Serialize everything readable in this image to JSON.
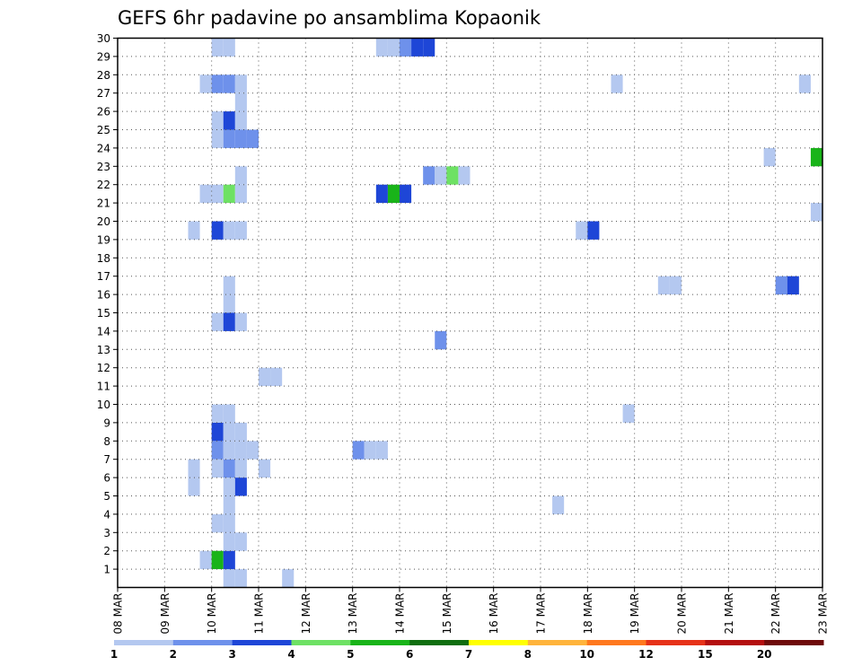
{
  "chart_data": {
    "type": "heatmap",
    "title": "GEFS 6hr padavine po ansamblima Kopaonik",
    "x_tick_labels": [
      "08 MAR",
      "09 MAR",
      "10 MAR",
      "11 MAR",
      "12 MAR",
      "13 MAR",
      "14 MAR",
      "15 MAR",
      "16 MAR",
      "17 MAR",
      "18 MAR",
      "19 MAR",
      "20 MAR",
      "21 MAR",
      "22 MAR",
      "23 MAR"
    ],
    "y_tick_labels": [
      "1",
      "2",
      "3",
      "4",
      "5",
      "6",
      "7",
      "8",
      "9",
      "10",
      "11",
      "12",
      "13",
      "14",
      "15",
      "16",
      "17",
      "18",
      "19",
      "20",
      "21",
      "22",
      "23",
      "24",
      "25",
      "26",
      "27",
      "28",
      "29",
      "30"
    ],
    "xlim_days": [
      8,
      23
    ],
    "ylim": [
      0,
      30
    ],
    "grid": true,
    "legend": {
      "placement": "bottom",
      "labels": [
        "1",
        "2",
        "3",
        "4",
        "5",
        "6",
        "7",
        "8",
        "10",
        "12",
        "15",
        "20"
      ],
      "colors": [
        "#b4c8f0",
        "#6e91eb",
        "#1e46d7",
        "#6ee164",
        "#19b419",
        "#0f6e0f",
        "#ffff00",
        "#ffb43c",
        "#ff781e",
        "#e63219",
        "#b40f0f",
        "#6e0a0a"
      ]
    },
    "cells": [
      {
        "x": "10 MAR 06",
        "y": 0,
        "v": 1
      },
      {
        "x": "10 MAR 12",
        "y": 0,
        "v": 1
      },
      {
        "x": "11 MAR 12",
        "y": 0,
        "v": 1
      },
      {
        "x": "09 MAR 18",
        "y": 1,
        "v": 1
      },
      {
        "x": "10 MAR 00",
        "y": 1,
        "v": 5
      },
      {
        "x": "10 MAR 06",
        "y": 1,
        "v": 3
      },
      {
        "x": "10 MAR 06",
        "y": 2,
        "v": 1
      },
      {
        "x": "10 MAR 12",
        "y": 2,
        "v": 1
      },
      {
        "x": "10 MAR 00",
        "y": 3,
        "v": 1
      },
      {
        "x": "10 MAR 06",
        "y": 3,
        "v": 1
      },
      {
        "x": "10 MAR 06",
        "y": 4,
        "v": 1
      },
      {
        "x": "17 MAR 06",
        "y": 4,
        "v": 1
      },
      {
        "x": "09 MAR 12",
        "y": 5,
        "v": 1
      },
      {
        "x": "10 MAR 06",
        "y": 5,
        "v": 1
      },
      {
        "x": "10 MAR 12",
        "y": 5,
        "v": 3
      },
      {
        "x": "09 MAR 12",
        "y": 6,
        "v": 1
      },
      {
        "x": "10 MAR 00",
        "y": 6,
        "v": 1
      },
      {
        "x": "10 MAR 06",
        "y": 6,
        "v": 2
      },
      {
        "x": "10 MAR 12",
        "y": 6,
        "v": 1
      },
      {
        "x": "11 MAR 00",
        "y": 6,
        "v": 1
      },
      {
        "x": "10 MAR 00",
        "y": 7,
        "v": 2
      },
      {
        "x": "10 MAR 06",
        "y": 7,
        "v": 1
      },
      {
        "x": "10 MAR 12",
        "y": 7,
        "v": 1
      },
      {
        "x": "10 MAR 18",
        "y": 7,
        "v": 1
      },
      {
        "x": "13 MAR 00",
        "y": 7,
        "v": 2
      },
      {
        "x": "13 MAR 06",
        "y": 7,
        "v": 1
      },
      {
        "x": "13 MAR 12",
        "y": 7,
        "v": 1
      },
      {
        "x": "10 MAR 00",
        "y": 8,
        "v": 3
      },
      {
        "x": "10 MAR 06",
        "y": 8,
        "v": 1
      },
      {
        "x": "10 MAR 12",
        "y": 8,
        "v": 1
      },
      {
        "x": "10 MAR 00",
        "y": 9,
        "v": 1
      },
      {
        "x": "10 MAR 06",
        "y": 9,
        "v": 1
      },
      {
        "x": "18 MAR 18",
        "y": 9,
        "v": 1
      },
      {
        "x": "11 MAR 00",
        "y": 11,
        "v": 1
      },
      {
        "x": "11 MAR 06",
        "y": 11,
        "v": 1
      },
      {
        "x": "14 MAR 18",
        "y": 13,
        "v": 2
      },
      {
        "x": "10 MAR 00",
        "y": 14,
        "v": 1
      },
      {
        "x": "10 MAR 06",
        "y": 14,
        "v": 3
      },
      {
        "x": "10 MAR 12",
        "y": 14,
        "v": 1
      },
      {
        "x": "10 MAR 06",
        "y": 15,
        "v": 1
      },
      {
        "x": "10 MAR 06",
        "y": 16,
        "v": 1
      },
      {
        "x": "19 MAR 12",
        "y": 16,
        "v": 1
      },
      {
        "x": "19 MAR 18",
        "y": 16,
        "v": 1
      },
      {
        "x": "22 MAR 00",
        "y": 16,
        "v": 2
      },
      {
        "x": "22 MAR 06",
        "y": 16,
        "v": 3
      },
      {
        "x": "09 MAR 12",
        "y": 19,
        "v": 1
      },
      {
        "x": "10 MAR 00",
        "y": 19,
        "v": 3
      },
      {
        "x": "10 MAR 06",
        "y": 19,
        "v": 1
      },
      {
        "x": "10 MAR 12",
        "y": 19,
        "v": 1
      },
      {
        "x": "17 MAR 18",
        "y": 19,
        "v": 1
      },
      {
        "x": "18 MAR 00",
        "y": 19,
        "v": 3
      },
      {
        "x": "22 MAR 18",
        "y": 20,
        "v": 1
      },
      {
        "x": "09 MAR 18",
        "y": 21,
        "v": 1
      },
      {
        "x": "10 MAR 00",
        "y": 21,
        "v": 1
      },
      {
        "x": "10 MAR 06",
        "y": 21,
        "v": 4
      },
      {
        "x": "10 MAR 12",
        "y": 21,
        "v": 1
      },
      {
        "x": "13 MAR 12",
        "y": 21,
        "v": 3
      },
      {
        "x": "13 MAR 18",
        "y": 21,
        "v": 5
      },
      {
        "x": "14 MAR 00",
        "y": 21,
        "v": 3
      },
      {
        "x": "10 MAR 12",
        "y": 22,
        "v": 1
      },
      {
        "x": "14 MAR 12",
        "y": 22,
        "v": 2
      },
      {
        "x": "14 MAR 18",
        "y": 22,
        "v": 1
      },
      {
        "x": "15 MAR 00",
        "y": 22,
        "v": 4
      },
      {
        "x": "15 MAR 06",
        "y": 22,
        "v": 1
      },
      {
        "x": "21 MAR 18",
        "y": 23,
        "v": 1
      },
      {
        "x": "22 MAR 18",
        "y": 23,
        "v": 5
      },
      {
        "x": "10 MAR 00",
        "y": 24,
        "v": 1
      },
      {
        "x": "10 MAR 06",
        "y": 24,
        "v": 2
      },
      {
        "x": "10 MAR 12",
        "y": 24,
        "v": 2
      },
      {
        "x": "10 MAR 18",
        "y": 24,
        "v": 2
      },
      {
        "x": "10 MAR 00",
        "y": 25,
        "v": 1
      },
      {
        "x": "10 MAR 06",
        "y": 25,
        "v": 3
      },
      {
        "x": "10 MAR 12",
        "y": 25,
        "v": 1
      },
      {
        "x": "10 MAR 12",
        "y": 26,
        "v": 1
      },
      {
        "x": "09 MAR 18",
        "y": 27,
        "v": 1
      },
      {
        "x": "10 MAR 00",
        "y": 27,
        "v": 2
      },
      {
        "x": "10 MAR 06",
        "y": 27,
        "v": 2
      },
      {
        "x": "10 MAR 12",
        "y": 27,
        "v": 1
      },
      {
        "x": "18 MAR 12",
        "y": 27,
        "v": 1
      },
      {
        "x": "22 MAR 12",
        "y": 27,
        "v": 1
      },
      {
        "x": "10 MAR 00",
        "y": 29,
        "v": 1
      },
      {
        "x": "10 MAR 06",
        "y": 29,
        "v": 1
      },
      {
        "x": "13 MAR 12",
        "y": 29,
        "v": 1
      },
      {
        "x": "13 MAR 18",
        "y": 29,
        "v": 1
      },
      {
        "x": "14 MAR 00",
        "y": 29,
        "v": 2
      },
      {
        "x": "14 MAR 06",
        "y": 29,
        "v": 3
      },
      {
        "x": "14 MAR 12",
        "y": 29,
        "v": 3
      }
    ]
  }
}
